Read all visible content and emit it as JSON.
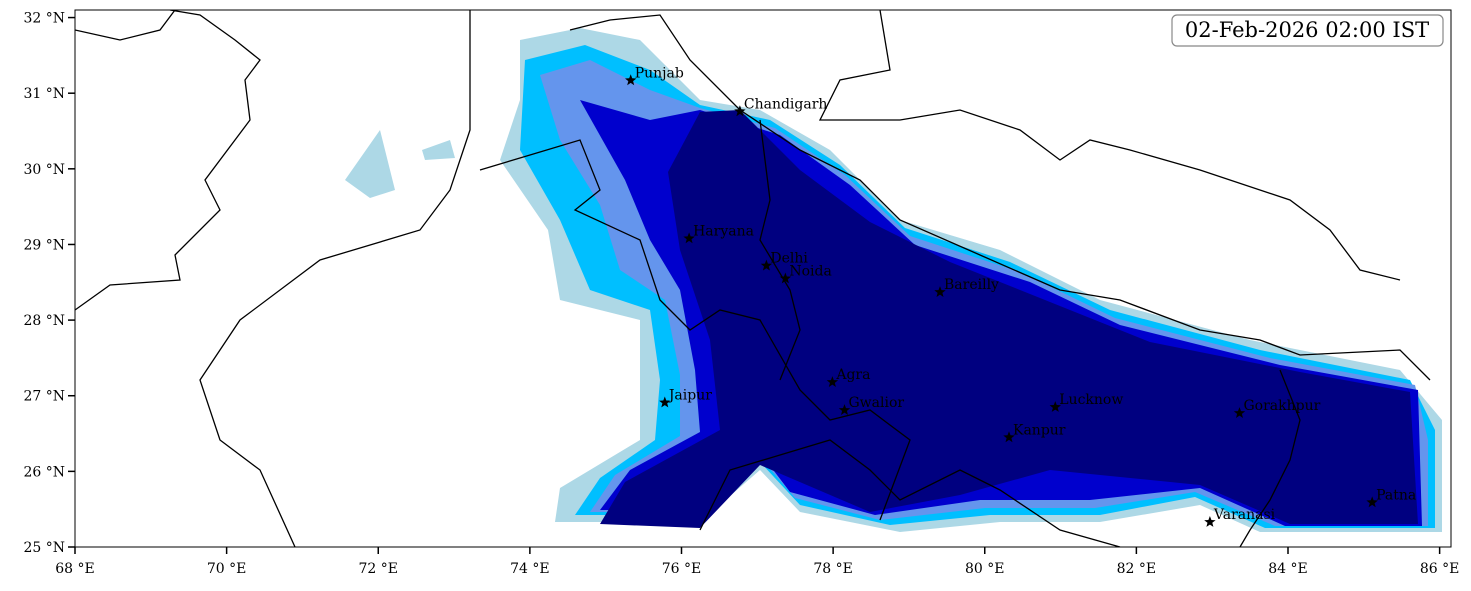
{
  "map": {
    "timestamp": "02-Feb-2026 02:00 IST",
    "xlim": [
      68,
      86.15
    ],
    "ylim": [
      25,
      32.1
    ],
    "xticks": [
      {
        "value": 68,
        "label": "68 °E"
      },
      {
        "value": 70,
        "label": "70 °E"
      },
      {
        "value": 72,
        "label": "72 °E"
      },
      {
        "value": 74,
        "label": "74 °E"
      },
      {
        "value": 76,
        "label": "76 °E"
      },
      {
        "value": 78,
        "label": "78 °E"
      },
      {
        "value": 80,
        "label": "80 °E"
      },
      {
        "value": 82,
        "label": "82 °E"
      },
      {
        "value": 84,
        "label": "84 °E"
      },
      {
        "value": 86,
        "label": "86 °E"
      }
    ],
    "yticks": [
      {
        "value": 25,
        "label": "25 °N"
      },
      {
        "value": 26,
        "label": "26 °N"
      },
      {
        "value": 27,
        "label": "27 °N"
      },
      {
        "value": 28,
        "label": "28 °N"
      },
      {
        "value": 29,
        "label": "29 °N"
      },
      {
        "value": 30,
        "label": "30 °N"
      },
      {
        "value": 31,
        "label": "31 °N"
      },
      {
        "value": 32,
        "label": "32 °N"
      }
    ],
    "cities": [
      {
        "name": "Punjab",
        "lon": 75.33,
        "lat": 31.17
      },
      {
        "name": "Chandigarh",
        "lon": 76.77,
        "lat": 30.76
      },
      {
        "name": "Haryana",
        "lon": 76.1,
        "lat": 29.08
      },
      {
        "name": "Delhi",
        "lon": 77.12,
        "lat": 28.72
      },
      {
        "name": "Noida",
        "lon": 77.37,
        "lat": 28.55
      },
      {
        "name": "Bareilly",
        "lon": 79.41,
        "lat": 28.37
      },
      {
        "name": "Agra",
        "lon": 77.99,
        "lat": 27.18
      },
      {
        "name": "Jaipur",
        "lon": 75.78,
        "lat": 26.91
      },
      {
        "name": "Gwalior",
        "lon": 78.15,
        "lat": 26.81
      },
      {
        "name": "Lucknow",
        "lon": 80.93,
        "lat": 26.85
      },
      {
        "name": "Kanpur",
        "lon": 80.32,
        "lat": 26.45
      },
      {
        "name": "Gorakhpur",
        "lon": 83.36,
        "lat": 26.77
      },
      {
        "name": "Varanasi",
        "lon": 82.97,
        "lat": 25.33
      },
      {
        "name": "Patna",
        "lon": 85.11,
        "lat": 25.59
      }
    ]
  }
}
